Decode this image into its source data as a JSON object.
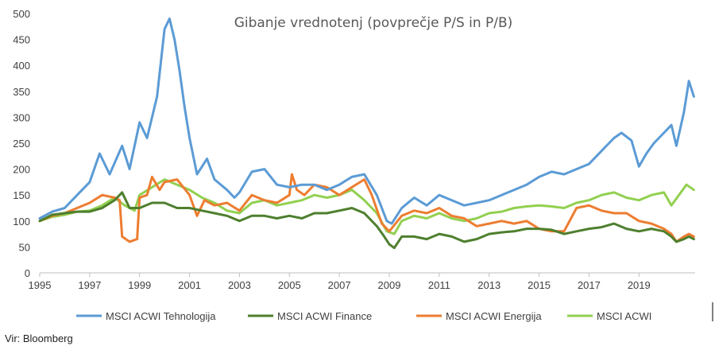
{
  "chart_data": {
    "type": "line",
    "title": "Gibanje vrednotenj (povprečje P/S in P/B)",
    "xlabel": "",
    "ylabel": "",
    "xlim": [
      1995,
      2021.25
    ],
    "ylim": [
      0,
      500
    ],
    "x_ticks": [
      "1995",
      "1997",
      "1999",
      "2001",
      "2003",
      "2005",
      "2007",
      "2009",
      "2011",
      "2013",
      "2015",
      "2017",
      "2019"
    ],
    "x_tick_values": [
      1995,
      1997,
      1999,
      2001,
      2003,
      2005,
      2007,
      2009,
      2011,
      2013,
      2015,
      2017,
      2019
    ],
    "y_ticks": [
      "0",
      "50",
      "100",
      "150",
      "200",
      "250",
      "300",
      "350",
      "400",
      "450",
      "500"
    ],
    "y_tick_values": [
      0,
      50,
      100,
      150,
      200,
      250,
      300,
      350,
      400,
      450,
      500
    ],
    "grid": false,
    "legend_position": "bottom",
    "series": [
      {
        "name": "MSCI ACWI Tehnologija",
        "color": "#5B9BD5",
        "points": [
          [
            1995,
            105
          ],
          [
            1995.5,
            118
          ],
          [
            1996,
            125
          ],
          [
            1996.5,
            150
          ],
          [
            1997,
            175
          ],
          [
            1997.4,
            230
          ],
          [
            1997.8,
            190
          ],
          [
            1998.3,
            245
          ],
          [
            1998.6,
            200
          ],
          [
            1999,
            290
          ],
          [
            1999.3,
            260
          ],
          [
            1999.7,
            340
          ],
          [
            2000.0,
            470
          ],
          [
            2000.2,
            490
          ],
          [
            2000.4,
            450
          ],
          [
            2000.6,
            390
          ],
          [
            2000.8,
            320
          ],
          [
            2001.0,
            260
          ],
          [
            2001.3,
            190
          ],
          [
            2001.7,
            220
          ],
          [
            2002.0,
            180
          ],
          [
            2002.5,
            160
          ],
          [
            2002.8,
            145
          ],
          [
            2003,
            155
          ],
          [
            2003.5,
            195
          ],
          [
            2004,
            200
          ],
          [
            2004.5,
            170
          ],
          [
            2005,
            165
          ],
          [
            2005.5,
            170
          ],
          [
            2006,
            170
          ],
          [
            2006.5,
            160
          ],
          [
            2007,
            170
          ],
          [
            2007.5,
            185
          ],
          [
            2008,
            190
          ],
          [
            2008.5,
            150
          ],
          [
            2008.9,
            100
          ],
          [
            2009.1,
            95
          ],
          [
            2009.5,
            125
          ],
          [
            2010,
            145
          ],
          [
            2010.5,
            130
          ],
          [
            2011,
            150
          ],
          [
            2011.5,
            140
          ],
          [
            2012,
            130
          ],
          [
            2012.5,
            135
          ],
          [
            2013,
            140
          ],
          [
            2013.5,
            150
          ],
          [
            2014,
            160
          ],
          [
            2014.5,
            170
          ],
          [
            2015,
            185
          ],
          [
            2015.5,
            195
          ],
          [
            2016,
            190
          ],
          [
            2016.5,
            200
          ],
          [
            2017,
            210
          ],
          [
            2017.5,
            235
          ],
          [
            2018,
            260
          ],
          [
            2018.3,
            270
          ],
          [
            2018.7,
            255
          ],
          [
            2019,
            205
          ],
          [
            2019.3,
            230
          ],
          [
            2019.6,
            250
          ],
          [
            2020,
            270
          ],
          [
            2020.3,
            285
          ],
          [
            2020.5,
            245
          ],
          [
            2020.8,
            310
          ],
          [
            2021.0,
            370
          ],
          [
            2021.2,
            340
          ]
        ]
      },
      {
        "name": "MSCI ACWI Finance",
        "color": "#4E7F2E",
        "points": [
          [
            1995,
            100
          ],
          [
            1995.5,
            112
          ],
          [
            1996,
            115
          ],
          [
            1996.5,
            118
          ],
          [
            1997,
            118
          ],
          [
            1997.5,
            125
          ],
          [
            1998,
            140
          ],
          [
            1998.3,
            155
          ],
          [
            1998.6,
            125
          ],
          [
            1999,
            125
          ],
          [
            1999.5,
            135
          ],
          [
            2000,
            135
          ],
          [
            2000.5,
            125
          ],
          [
            2001,
            125
          ],
          [
            2001.5,
            120
          ],
          [
            2002,
            115
          ],
          [
            2002.5,
            110
          ],
          [
            2003,
            100
          ],
          [
            2003.5,
            110
          ],
          [
            2004,
            110
          ],
          [
            2004.5,
            105
          ],
          [
            2005,
            110
          ],
          [
            2005.5,
            105
          ],
          [
            2006,
            115
          ],
          [
            2006.5,
            115
          ],
          [
            2007,
            120
          ],
          [
            2007.5,
            125
          ],
          [
            2008,
            115
          ],
          [
            2008.5,
            90
          ],
          [
            2008.8,
            70
          ],
          [
            2009.0,
            55
          ],
          [
            2009.2,
            48
          ],
          [
            2009.5,
            70
          ],
          [
            2010,
            70
          ],
          [
            2010.5,
            65
          ],
          [
            2011,
            75
          ],
          [
            2011.5,
            70
          ],
          [
            2012,
            60
          ],
          [
            2012.5,
            65
          ],
          [
            2013,
            75
          ],
          [
            2013.5,
            78
          ],
          [
            2014,
            80
          ],
          [
            2014.5,
            85
          ],
          [
            2015,
            85
          ],
          [
            2015.5,
            83
          ],
          [
            2016,
            75
          ],
          [
            2016.5,
            80
          ],
          [
            2017,
            85
          ],
          [
            2017.5,
            88
          ],
          [
            2018,
            95
          ],
          [
            2018.5,
            85
          ],
          [
            2019,
            80
          ],
          [
            2019.5,
            85
          ],
          [
            2020,
            80
          ],
          [
            2020.3,
            70
          ],
          [
            2020.5,
            60
          ],
          [
            2020.8,
            65
          ],
          [
            2021.0,
            70
          ],
          [
            2021.2,
            65
          ]
        ]
      },
      {
        "name": "MSCI ACWI Energija",
        "color": "#ED7D31",
        "points": [
          [
            1995,
            100
          ],
          [
            1995.5,
            110
          ],
          [
            1996,
            115
          ],
          [
            1996.5,
            125
          ],
          [
            1997,
            135
          ],
          [
            1997.5,
            150
          ],
          [
            1998,
            145
          ],
          [
            1998.2,
            140
          ],
          [
            1998.3,
            70
          ],
          [
            1998.6,
            60
          ],
          [
            1998.9,
            65
          ],
          [
            1999.0,
            145
          ],
          [
            1999.3,
            150
          ],
          [
            1999.5,
            185
          ],
          [
            1999.8,
            160
          ],
          [
            2000,
            175
          ],
          [
            2000.5,
            180
          ],
          [
            2001,
            150
          ],
          [
            2001.3,
            110
          ],
          [
            2001.6,
            140
          ],
          [
            2002,
            130
          ],
          [
            2002.5,
            135
          ],
          [
            2003,
            120
          ],
          [
            2003.5,
            150
          ],
          [
            2004,
            140
          ],
          [
            2004.5,
            135
          ],
          [
            2005,
            150
          ],
          [
            2005.1,
            190
          ],
          [
            2005.3,
            160
          ],
          [
            2005.6,
            150
          ],
          [
            2006,
            170
          ],
          [
            2006.5,
            165
          ],
          [
            2007,
            150
          ],
          [
            2007.5,
            165
          ],
          [
            2008,
            180
          ],
          [
            2008.3,
            150
          ],
          [
            2008.7,
            95
          ],
          [
            2009,
            80
          ],
          [
            2009.5,
            110
          ],
          [
            2010,
            120
          ],
          [
            2010.5,
            115
          ],
          [
            2011,
            125
          ],
          [
            2011.5,
            110
          ],
          [
            2012,
            105
          ],
          [
            2012.5,
            90
          ],
          [
            2013,
            95
          ],
          [
            2013.5,
            100
          ],
          [
            2014,
            95
          ],
          [
            2014.5,
            100
          ],
          [
            2015,
            85
          ],
          [
            2015.5,
            80
          ],
          [
            2016,
            80
          ],
          [
            2016.5,
            125
          ],
          [
            2017,
            130
          ],
          [
            2017.5,
            120
          ],
          [
            2018,
            115
          ],
          [
            2018.5,
            115
          ],
          [
            2019,
            100
          ],
          [
            2019.5,
            95
          ],
          [
            2020,
            85
          ],
          [
            2020.3,
            75
          ],
          [
            2020.5,
            60
          ],
          [
            2020.8,
            70
          ],
          [
            2021.0,
            75
          ],
          [
            2021.2,
            70
          ]
        ]
      },
      {
        "name": "MSCI ACWI",
        "color": "#92D050",
        "points": [
          [
            1995,
            100
          ],
          [
            1995.5,
            108
          ],
          [
            1996,
            112
          ],
          [
            1996.5,
            118
          ],
          [
            1997,
            120
          ],
          [
            1997.5,
            130
          ],
          [
            1998,
            145
          ],
          [
            1998.4,
            130
          ],
          [
            1998.8,
            120
          ],
          [
            1999,
            150
          ],
          [
            1999.5,
            165
          ],
          [
            2000,
            180
          ],
          [
            2000.5,
            170
          ],
          [
            2001,
            160
          ],
          [
            2001.5,
            145
          ],
          [
            2002,
            135
          ],
          [
            2002.5,
            120
          ],
          [
            2003,
            115
          ],
          [
            2003.5,
            135
          ],
          [
            2004,
            140
          ],
          [
            2004.5,
            130
          ],
          [
            2005,
            135
          ],
          [
            2005.5,
            140
          ],
          [
            2006,
            150
          ],
          [
            2006.5,
            145
          ],
          [
            2007,
            150
          ],
          [
            2007.5,
            160
          ],
          [
            2008,
            140
          ],
          [
            2008.5,
            115
          ],
          [
            2008.9,
            80
          ],
          [
            2009.2,
            75
          ],
          [
            2009.5,
            100
          ],
          [
            2010,
            110
          ],
          [
            2010.5,
            105
          ],
          [
            2011,
            115
          ],
          [
            2011.5,
            105
          ],
          [
            2012,
            100
          ],
          [
            2012.5,
            105
          ],
          [
            2013,
            115
          ],
          [
            2013.5,
            118
          ],
          [
            2014,
            125
          ],
          [
            2014.5,
            128
          ],
          [
            2015,
            130
          ],
          [
            2015.5,
            128
          ],
          [
            2016,
            125
          ],
          [
            2016.5,
            135
          ],
          [
            2017,
            140
          ],
          [
            2017.5,
            150
          ],
          [
            2018,
            155
          ],
          [
            2018.5,
            145
          ],
          [
            2019,
            140
          ],
          [
            2019.5,
            150
          ],
          [
            2020,
            155
          ],
          [
            2020.3,
            130
          ],
          [
            2020.6,
            150
          ],
          [
            2020.9,
            170
          ],
          [
            2021.2,
            160
          ]
        ]
      }
    ]
  },
  "source": "Vir: Bloomberg"
}
